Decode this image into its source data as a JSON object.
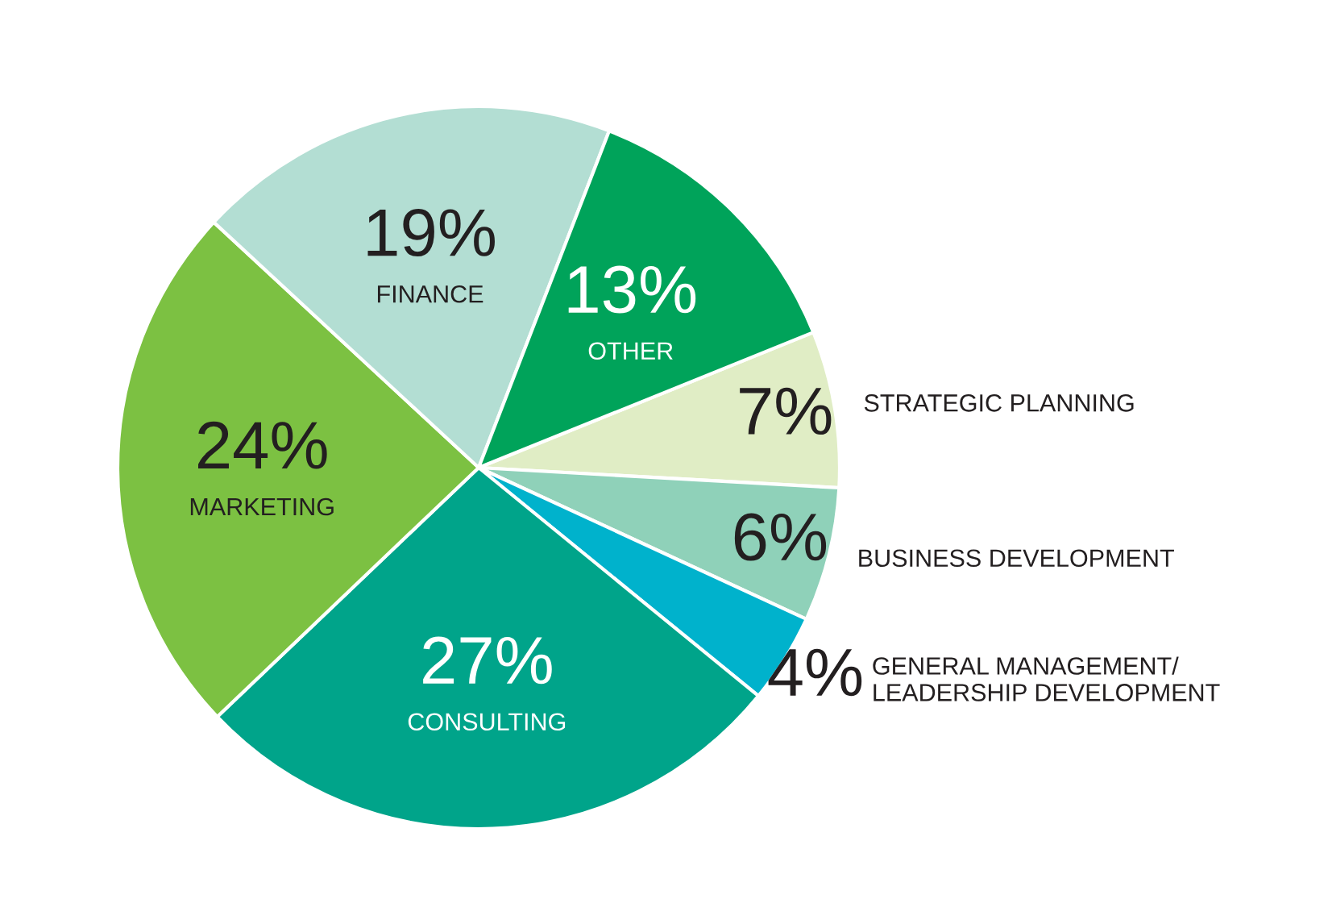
{
  "chart_data": {
    "type": "pie",
    "categories": [
      "STRATEGIC PLANNING",
      "BUSINESS DEVELOPMENT",
      "GENERAL MANAGEMENT/\nLEADERSHIP DEVELOPMENT",
      "CONSULTING",
      "MARKETING",
      "FINANCE",
      "OTHER"
    ],
    "values": [
      7,
      6,
      4,
      27,
      24,
      19,
      13
    ],
    "colors": [
      "#e0edc5",
      "#8fd1b9",
      "#00b2cc",
      "#00a48a",
      "#7cc142",
      "#b3ded3",
      "#00a35a"
    ],
    "value_labels": [
      "7%",
      "6%",
      "4%",
      "27%",
      "24%",
      "19%",
      "13%"
    ]
  }
}
